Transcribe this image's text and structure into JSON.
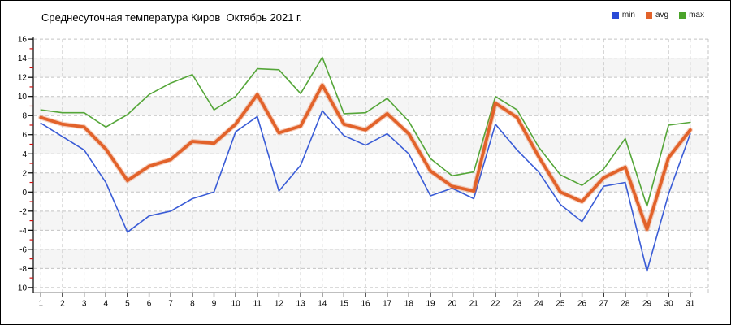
{
  "title": "Среднесуточная температура Киров  Октябрь 2021 г.",
  "legend": {
    "items": [
      {
        "label": "min",
        "color": "#2a4bd7"
      },
      {
        "label": "avg",
        "color": "#e2622a"
      },
      {
        "label": "max",
        "color": "#4aa32a"
      }
    ]
  },
  "chart_data": {
    "type": "line",
    "title": "Среднесуточная температура Киров  Октябрь 2021 г.",
    "x": [
      1,
      2,
      3,
      4,
      5,
      6,
      7,
      8,
      9,
      10,
      11,
      12,
      13,
      14,
      15,
      16,
      17,
      18,
      19,
      20,
      21,
      22,
      23,
      24,
      25,
      26,
      27,
      28,
      29,
      30,
      31
    ],
    "series": [
      {
        "name": "max",
        "color": "#55a639",
        "stroke_width": 1.6,
        "values": [
          8.6,
          8.3,
          8.3,
          6.8,
          8.1,
          10.2,
          11.4,
          12.3,
          8.6,
          10.0,
          12.9,
          12.8,
          10.3,
          14.1,
          8.2,
          8.3,
          9.8,
          7.4,
          3.5,
          1.7,
          2.1,
          10.0,
          8.6,
          4.7,
          1.8,
          0.7,
          2.4,
          5.6,
          -1.5,
          7.0,
          7.3
        ]
      },
      {
        "name": "min",
        "color": "#3a5cd6",
        "stroke_width": 1.6,
        "values": [
          7.2,
          5.8,
          4.4,
          1.0,
          -4.2,
          -2.5,
          -2.0,
          -0.7,
          0.0,
          6.3,
          7.9,
          0.1,
          2.8,
          8.5,
          5.9,
          4.9,
          6.1,
          4.0,
          -0.4,
          0.4,
          -0.7,
          7.1,
          4.4,
          2.1,
          -1.3,
          -3.1,
          0.6,
          1.0,
          -8.3,
          -0.2,
          6.1
        ]
      },
      {
        "name": "avg",
        "color": "#e2622a",
        "stroke_width": 3.8,
        "values": [
          7.8,
          7.1,
          6.8,
          4.5,
          1.2,
          2.7,
          3.4,
          5.3,
          5.1,
          7.1,
          10.2,
          6.2,
          6.9,
          11.2,
          7.1,
          6.5,
          8.2,
          6.1,
          2.2,
          0.6,
          0.1,
          9.3,
          7.8,
          3.7,
          0.0,
          -1.0,
          1.5,
          2.6,
          -3.9,
          3.6,
          6.5
        ]
      }
    ],
    "ylim": [
      -10,
      16
    ],
    "ytick_step": 2,
    "grid": true,
    "legend_position": "top-right",
    "style": {
      "gridline_color": "#c4c4c4",
      "band_color": "#f5f5f5",
      "axis_color": "#000000",
      "major_tick_color": "#000000",
      "minor_tick_color": "#cc1111",
      "label_color": "#000000"
    }
  }
}
